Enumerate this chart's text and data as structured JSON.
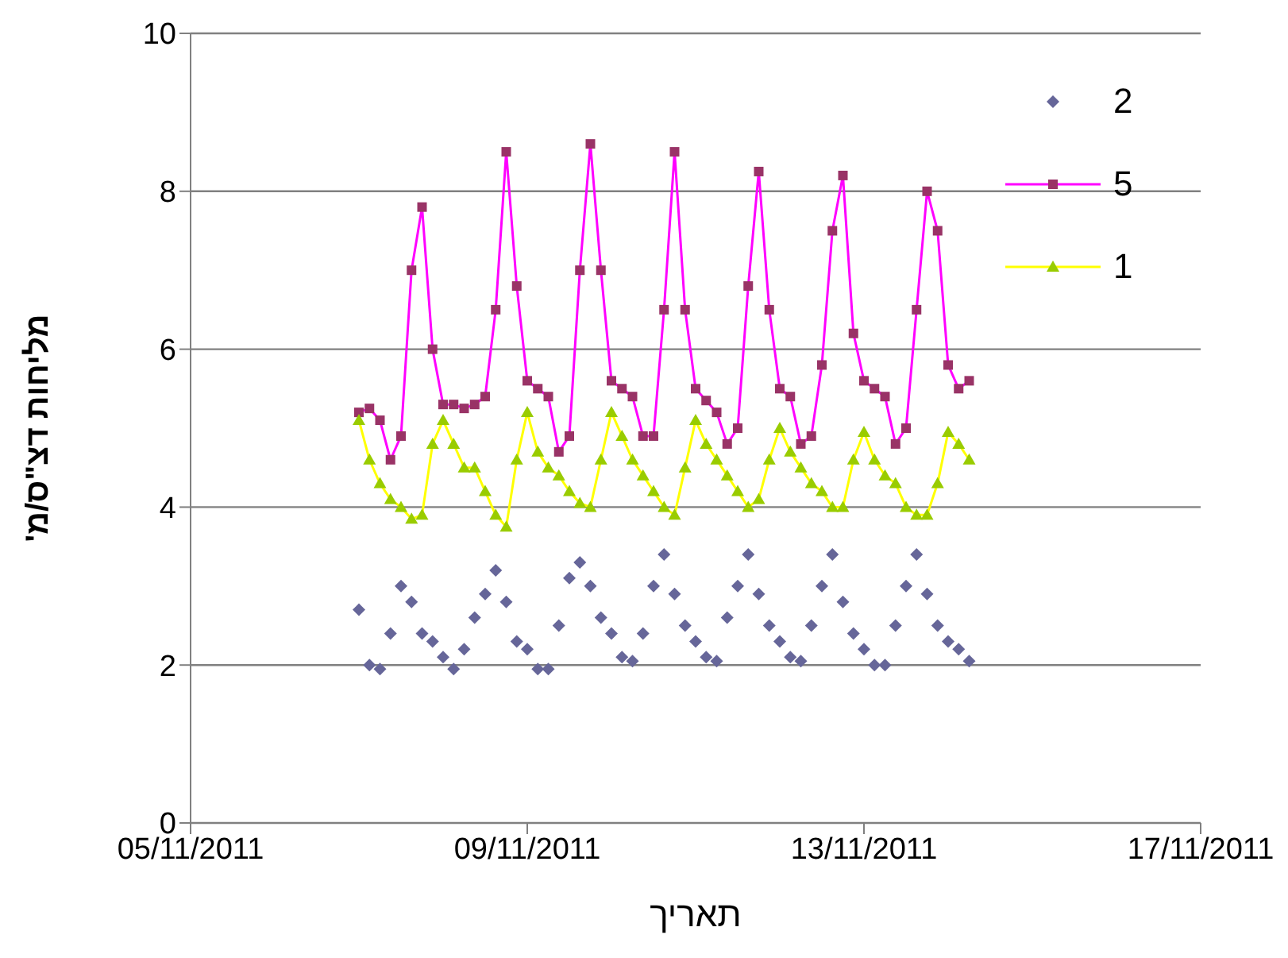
{
  "chart_data": {
    "type": "line",
    "xlabel": "תאריך",
    "ylabel": "מליחות דצ\"ס/מ'",
    "x": [
      "2011-11-07T00:00",
      "2011-11-07T03:00",
      "2011-11-07T06:00",
      "2011-11-07T09:00",
      "2011-11-07T12:00",
      "2011-11-07T15:00",
      "2011-11-07T18:00",
      "2011-11-07T21:00",
      "2011-11-08T00:00",
      "2011-11-08T03:00",
      "2011-11-08T06:00",
      "2011-11-08T09:00",
      "2011-11-08T12:00",
      "2011-11-08T15:00",
      "2011-11-08T18:00",
      "2011-11-08T21:00",
      "2011-11-09T00:00",
      "2011-11-09T03:00",
      "2011-11-09T06:00",
      "2011-11-09T09:00",
      "2011-11-09T12:00",
      "2011-11-09T15:00",
      "2011-11-09T18:00",
      "2011-11-09T21:00",
      "2011-11-10T00:00",
      "2011-11-10T03:00",
      "2011-11-10T06:00",
      "2011-11-10T09:00",
      "2011-11-10T12:00",
      "2011-11-10T15:00",
      "2011-11-10T18:00",
      "2011-11-10T21:00",
      "2011-11-11T00:00",
      "2011-11-11T03:00",
      "2011-11-11T06:00",
      "2011-11-11T09:00",
      "2011-11-11T12:00",
      "2011-11-11T15:00",
      "2011-11-11T18:00",
      "2011-11-11T21:00",
      "2011-11-12T00:00",
      "2011-11-12T03:00",
      "2011-11-12T06:00",
      "2011-11-12T09:00",
      "2011-11-12T12:00",
      "2011-11-12T15:00",
      "2011-11-12T18:00",
      "2011-11-12T21:00",
      "2011-11-13T00:00",
      "2011-11-13T03:00",
      "2011-11-13T06:00",
      "2011-11-13T09:00",
      "2011-11-13T12:00",
      "2011-11-13T15:00",
      "2011-11-13T18:00",
      "2011-11-13T21:00",
      "2011-11-14T00:00",
      "2011-11-14T03:00",
      "2011-11-14T06:00"
    ],
    "series": [
      {
        "name": "2",
        "type": "scatter",
        "marker": "diamond",
        "color": "#666699",
        "values": [
          2.7,
          2.0,
          1.95,
          2.4,
          3.0,
          2.8,
          2.4,
          2.3,
          2.1,
          1.95,
          2.2,
          2.6,
          2.9,
          3.2,
          2.8,
          2.3,
          2.2,
          1.95,
          1.95,
          2.5,
          3.1,
          3.3,
          3.0,
          2.6,
          2.4,
          2.1,
          2.05,
          2.4,
          3.0,
          3.4,
          2.9,
          2.5,
          2.3,
          2.1,
          2.05,
          2.6,
          3.0,
          3.4,
          2.9,
          2.5,
          2.3,
          2.1,
          2.05,
          2.5,
          3.0,
          3.4,
          2.8,
          2.4,
          2.2,
          2.0,
          2.0,
          2.5,
          3.0,
          3.4,
          2.9,
          2.5,
          2.3,
          2.2,
          2.05
        ]
      },
      {
        "name": "5",
        "marker": "square",
        "color": "#993366",
        "values": [
          5.2,
          5.25,
          5.1,
          4.6,
          4.9,
          7.0,
          7.8,
          6.0,
          5.3,
          5.3,
          5.25,
          5.3,
          5.4,
          6.5,
          8.5,
          6.8,
          5.6,
          5.5,
          5.4,
          4.7,
          4.9,
          7.0,
          8.6,
          7.0,
          5.6,
          5.5,
          5.4,
          4.9,
          4.9,
          6.5,
          8.5,
          6.5,
          5.5,
          5.35,
          5.2,
          4.8,
          5.0,
          6.8,
          8.25,
          6.5,
          5.5,
          5.4,
          4.8,
          4.9,
          5.8,
          7.5,
          8.2,
          6.2,
          5.6,
          5.5,
          5.4,
          4.8,
          5.0,
          6.5,
          8.0,
          7.5,
          5.8,
          5.5,
          5.6
        ]
      },
      {
        "name": "1",
        "marker": "triangle",
        "color": "#99cc00",
        "values": [
          5.1,
          4.6,
          4.3,
          4.1,
          4.0,
          3.85,
          3.9,
          4.8,
          5.1,
          4.8,
          4.5,
          4.5,
          4.2,
          3.9,
          3.75,
          4.6,
          5.2,
          4.7,
          4.5,
          4.4,
          4.2,
          4.05,
          4.0,
          4.6,
          5.2,
          4.9,
          4.6,
          4.4,
          4.2,
          4.0,
          3.9,
          4.5,
          5.1,
          4.8,
          4.6,
          4.4,
          4.2,
          4.0,
          4.1,
          4.6,
          5.0,
          4.7,
          4.5,
          4.3,
          4.2,
          4.0,
          4.0,
          4.6,
          4.95,
          4.6,
          4.4,
          4.3,
          4.0,
          3.9,
          3.9,
          4.3,
          4.95,
          4.8,
          4.6
        ]
      }
    ],
    "xlim": [
      "2011-11-05",
      "2011-11-17"
    ],
    "xticks": [
      {
        "value": "2011-11-05",
        "label": "05/11/2011"
      },
      {
        "value": "2011-11-09",
        "label": "09/11/2011"
      },
      {
        "value": "2011-11-13",
        "label": "13/11/2011"
      },
      {
        "value": "2011-11-17",
        "label": "17/11/2011"
      }
    ],
    "ylim": [
      0,
      10
    ],
    "yticks": [
      0,
      2,
      4,
      6,
      8,
      10
    ],
    "grid": "y",
    "legend": "top right"
  }
}
